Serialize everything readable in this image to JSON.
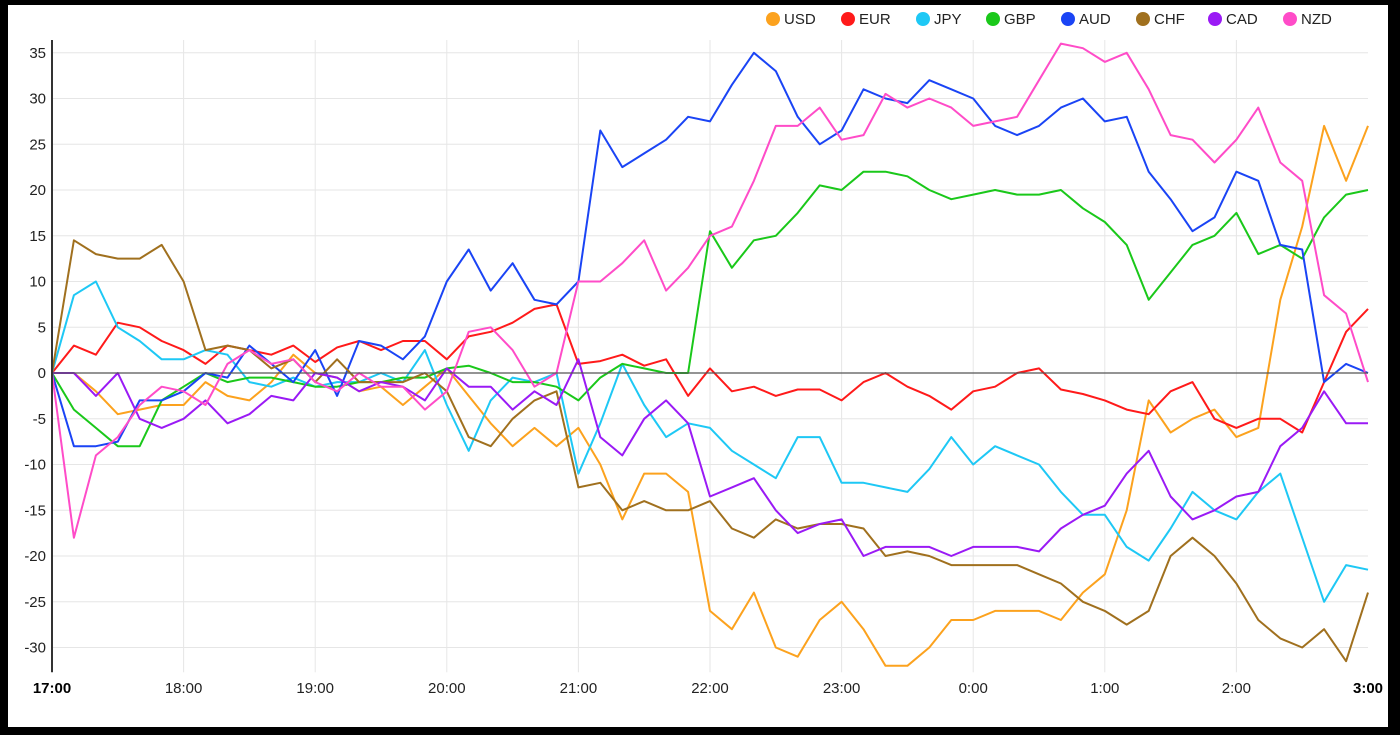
{
  "chart_data": {
    "type": "line",
    "title": "",
    "xlabel": "",
    "ylabel": "",
    "x_ticks": [
      "17:00",
      "18:00",
      "19:00",
      "20:00",
      "21:00",
      "22:00",
      "23:00",
      "0:00",
      "1:00",
      "2:00",
      "3:00"
    ],
    "x_interval_minutes": 10,
    "y_ticks": [
      35,
      30,
      25,
      20,
      15,
      10,
      5,
      0,
      -5,
      -10,
      -15,
      -20,
      -25,
      -30
    ],
    "ylim": [
      -32.7,
      36.4
    ],
    "grid": true,
    "legend_position": "top-right",
    "series": [
      {
        "name": "USD",
        "color": "#fca21e",
        "values": [
          0,
          0,
          -2,
          -4.5,
          -4,
          -3.5,
          -3.5,
          -1,
          -2.5,
          -3,
          -1,
          2,
          0,
          -0.5,
          -2,
          -1.5,
          -3.5,
          -1.5,
          0.5,
          -2.5,
          -5.5,
          -8,
          -6,
          -8,
          -6,
          -10,
          -16,
          -11,
          -11,
          -13,
          -26,
          -28,
          -24,
          -30,
          -31,
          -27,
          -25,
          -28,
          -32,
          -32,
          -30,
          -27,
          -27,
          -26,
          -26,
          -26,
          -27,
          -24,
          -22,
          -15,
          -3,
          -6.5,
          -5,
          -4,
          -7,
          -6,
          8,
          16,
          27,
          21,
          27
        ]
      },
      {
        "name": "EUR",
        "color": "#ff1a1a",
        "values": [
          0,
          3,
          2,
          5.5,
          5,
          3.5,
          2.5,
          1,
          3,
          2.5,
          2,
          3,
          1.2,
          2.8,
          3.5,
          2.5,
          3.5,
          3.5,
          1.5,
          4,
          4.5,
          5.5,
          7,
          7.5,
          1,
          1.3,
          2,
          0.8,
          1.5,
          -2.5,
          0.5,
          -2,
          -1.5,
          -2.5,
          -1.8,
          -1.8,
          -3,
          -1,
          0,
          -1.5,
          -2.5,
          -4,
          -2,
          -1.5,
          0,
          0.5,
          -1.8,
          -2.3,
          -3,
          -4,
          -4.5,
          -2,
          -1,
          -5,
          -6,
          -5,
          -5,
          -6.5,
          -1,
          4.5,
          7
        ]
      },
      {
        "name": "JPY",
        "color": "#1ec8f5",
        "values": [
          0,
          8.5,
          10,
          5,
          3.5,
          1.5,
          1.5,
          2.5,
          2,
          -1,
          -1.5,
          -0.5,
          -1.5,
          -1,
          -1,
          0,
          -1,
          2.5,
          -3.5,
          -8.5,
          -3,
          -0.5,
          -1,
          0,
          -11,
          -5.5,
          1,
          -3.5,
          -7,
          -5.5,
          -6,
          -8.5,
          -10,
          -11.5,
          -7,
          -7,
          -12,
          -12,
          -12.5,
          -13,
          -10.5,
          -7,
          -10,
          -8,
          -9,
          -10,
          -13,
          -15.5,
          -15.5,
          -19,
          -20.5,
          -17,
          -13,
          -15,
          -16,
          -13,
          -11,
          -18,
          -25,
          -21,
          -21.5
        ]
      },
      {
        "name": "GBP",
        "color": "#1ac81a",
        "values": [
          0,
          -4,
          -6,
          -8,
          -8,
          -3,
          -1.5,
          0,
          -1,
          -0.5,
          -0.5,
          -1,
          -1.5,
          -1.5,
          -1,
          -1,
          -0.5,
          -0.5,
          0.5,
          0.8,
          0,
          -1,
          -1,
          -1.5,
          -3,
          -0.5,
          1,
          0.5,
          0,
          0,
          15.5,
          11.5,
          14.5,
          15,
          17.5,
          20.5,
          20,
          22,
          22,
          21.5,
          20,
          19,
          19.5,
          20,
          19.5,
          19.5,
          20,
          18,
          16.5,
          14,
          8,
          11,
          14,
          15,
          17.5,
          13,
          14,
          12.5,
          17,
          19.5,
          20
        ]
      },
      {
        "name": "AUD",
        "color": "#1a44f5",
        "values": [
          0,
          -8,
          -8,
          -7.5,
          -3,
          -3,
          -2,
          0,
          -0.5,
          3,
          1,
          -1,
          2.5,
          -2.5,
          3.5,
          3,
          1.5,
          4,
          10,
          13.5,
          9,
          12,
          8,
          7.5,
          10,
          26.5,
          22.5,
          24,
          25.5,
          28,
          27.5,
          31.5,
          35,
          33,
          28,
          25,
          26.5,
          31,
          30,
          29.5,
          32,
          31,
          30,
          27,
          26,
          27,
          29,
          30,
          27.5,
          28,
          22,
          19,
          15.5,
          17,
          22,
          21,
          14,
          13.5,
          -1,
          1,
          0
        ]
      },
      {
        "name": "CHF",
        "color": "#a0701e",
        "values": [
          0,
          14.5,
          13,
          12.5,
          12.5,
          14,
          10,
          2.5,
          3,
          2.5,
          0.5,
          1.5,
          -1,
          1.5,
          -1,
          -1,
          -1,
          0,
          -2,
          -7,
          -8,
          -5,
          -3,
          -2,
          -12.5,
          -12,
          -15,
          -14,
          -15,
          -15,
          -14,
          -17,
          -18,
          -16,
          -17,
          -16.5,
          -16.5,
          -17,
          -20,
          -19.5,
          -20,
          -21,
          -21,
          -21,
          -21,
          -22,
          -23,
          -25,
          -26,
          -27.5,
          -26,
          -20,
          -18,
          -20,
          -23,
          -27,
          -29,
          -30,
          -28,
          -31.5,
          -24
        ]
      },
      {
        "name": "CAD",
        "color": "#9a1af5",
        "values": [
          0,
          0,
          -2.5,
          0,
          -5,
          -6,
          -5,
          -3,
          -5.5,
          -4.5,
          -2.5,
          -3,
          0,
          -0.5,
          -2,
          -1,
          -1.5,
          -3,
          0.5,
          -1.5,
          -1.5,
          -4,
          -2,
          -3.5,
          1.5,
          -7,
          -9,
          -5,
          -3,
          -5.5,
          -13.5,
          -12.5,
          -11.5,
          -15,
          -17.5,
          -16.5,
          -16,
          -20,
          -19,
          -19,
          -19,
          -20,
          -19,
          -19,
          -19,
          -19.5,
          -17,
          -15.5,
          -14.5,
          -11,
          -8.5,
          -13.5,
          -16,
          -15,
          -13.5,
          -13,
          -8,
          -6,
          -2,
          -5.5,
          -5.5
        ]
      },
      {
        "name": "NZD",
        "color": "#ff4cc8",
        "values": [
          0,
          -18,
          -9,
          -7,
          -3.5,
          -1.5,
          -2,
          -3.5,
          1,
          2.5,
          1,
          1.5,
          -1,
          -2,
          0,
          -1.5,
          -1.5,
          -4,
          -2,
          4.5,
          5,
          2.5,
          -1.5,
          0,
          10,
          10,
          12,
          14.5,
          9,
          11.5,
          15,
          16,
          21,
          27,
          27,
          29,
          25.5,
          26,
          30.5,
          29,
          30,
          29,
          27,
          27.5,
          28,
          32,
          36,
          35.5,
          34,
          35,
          31,
          26,
          25.5,
          23,
          25.5,
          29,
          23,
          21,
          8.5,
          6.5,
          -1
        ]
      }
    ]
  }
}
